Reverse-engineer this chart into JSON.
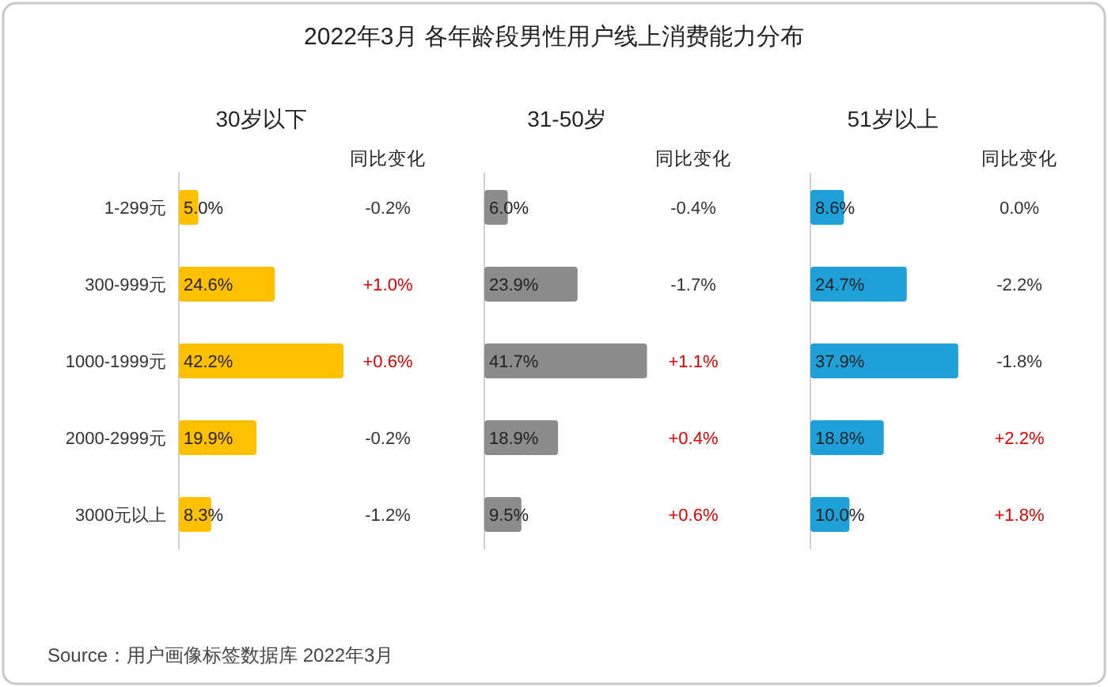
{
  "chart_data": [
    {
      "type": "other",
      "title": "2022年3月 各年龄段男性用户线上消费能力分布",
      "annotations": [
        "Source：用户画像标签数据库 2022年3月"
      ]
    },
    {
      "type": "bar",
      "orientation": "horizontal",
      "title": "30岁以下",
      "categories": [
        "1-299元",
        "300-999元",
        "1000-1999元",
        "2000-2999元",
        "3000元以上"
      ],
      "values": [
        5.0,
        24.6,
        42.2,
        19.9,
        8.3
      ],
      "value_labels": [
        "5.0%",
        "24.6%",
        "42.2%",
        "19.9%",
        "8.3%"
      ],
      "color": "#ffc000",
      "tick_labels": "y",
      "annotations": [
        "同比变化",
        "-0.2%",
        "+1.0%",
        "+0.6%",
        "-0.2%",
        "-1.2%"
      ]
    },
    {
      "type": "bar",
      "orientation": "horizontal",
      "title": "31-50岁",
      "categories": [
        null,
        null,
        null,
        null,
        null
      ],
      "values": [
        6.0,
        23.9,
        41.7,
        18.9,
        9.5
      ],
      "value_labels": [
        "6.0%",
        "23.9%",
        "41.7%",
        "18.9%",
        "9.5%"
      ],
      "color": "#8c8c8c",
      "tick_labels": false,
      "annotations": [
        "同比变化",
        "-0.4%",
        "-1.7%",
        "+1.1%",
        "+0.4%",
        "+0.6%"
      ]
    },
    {
      "type": "bar",
      "orientation": "horizontal",
      "title": "51岁以上",
      "categories": [
        null,
        null,
        null,
        null,
        null
      ],
      "values": [
        8.6,
        24.7,
        37.9,
        18.8,
        10.0
      ],
      "value_labels": [
        "8.6%",
        "24.7%",
        "37.9%",
        "18.8%",
        "10.0%"
      ],
      "color": "#1fa0d8",
      "tick_labels": false,
      "annotations": [
        "同比变化",
        "0.0%",
        "-2.2%",
        "-1.8%",
        "+2.2%",
        "+1.8%"
      ]
    }
  ]
}
